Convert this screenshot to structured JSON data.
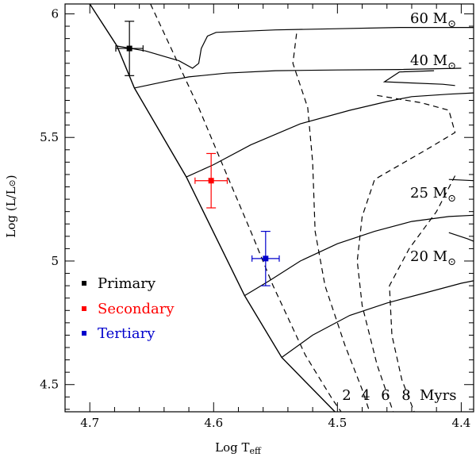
{
  "chart_data": {
    "type": "line",
    "title": "",
    "xlabel": {
      "main": "Log T",
      "sub": "eff"
    },
    "ylabel": {
      "main": "Log (L/L",
      "sun": "⊙",
      "tail": ")"
    },
    "xlim": [
      4.72,
      4.39
    ],
    "ylim": [
      4.39,
      6.04
    ],
    "x_reversed": true,
    "x_ticks": [
      "4.7",
      "4.6",
      "4.5",
      "4.4"
    ],
    "x_tick_values": [
      4.7,
      4.6,
      4.5,
      4.4
    ],
    "y_ticks": [
      "4.5",
      "5",
      "5.5",
      "6"
    ],
    "y_tick_values": [
      4.5,
      5.0,
      5.5,
      6.0
    ],
    "colors": {
      "primary": "#000000",
      "secondary": "#ff0000",
      "tertiary": "#0000cc"
    },
    "zams": [
      [
        4.7,
        6.04
      ],
      [
        4.678,
        5.87
      ],
      [
        4.664,
        5.7
      ],
      [
        4.622,
        5.34
      ],
      [
        4.575,
        4.86
      ],
      [
        4.545,
        4.61
      ],
      [
        4.502,
        4.39
      ]
    ],
    "tracks": [
      {
        "label": "60 M",
        "sun": "⊙",
        "points": [
          [
            4.678,
            5.87
          ],
          [
            4.655,
            5.85
          ],
          [
            4.628,
            5.81
          ],
          [
            4.617,
            5.78
          ],
          [
            4.612,
            5.8
          ],
          [
            4.61,
            5.86
          ],
          [
            4.605,
            5.91
          ],
          [
            4.598,
            5.925
          ],
          [
            4.55,
            5.935
          ],
          [
            4.5,
            5.94
          ],
          [
            4.45,
            5.945
          ],
          [
            4.39,
            5.945
          ]
        ]
      },
      {
        "label": "40 M",
        "sun": "⊙",
        "points": [
          [
            4.664,
            5.7
          ],
          [
            4.64,
            5.725
          ],
          [
            4.62,
            5.745
          ],
          [
            4.59,
            5.76
          ],
          [
            4.55,
            5.77
          ],
          [
            4.5,
            5.773
          ],
          [
            4.45,
            5.775
          ],
          [
            4.4,
            5.78
          ]
        ]
      },
      {
        "label": "",
        "points": [
          [
            4.422,
            5.77
          ],
          [
            4.45,
            5.765
          ],
          [
            4.462,
            5.725
          ],
          [
            4.415,
            5.715
          ],
          [
            4.405,
            5.71
          ]
        ]
      },
      {
        "label": "",
        "points": [
          [
            4.622,
            5.34
          ],
          [
            4.6,
            5.39
          ],
          [
            4.57,
            5.47
          ],
          [
            4.53,
            5.555
          ],
          [
            4.49,
            5.61
          ],
          [
            4.46,
            5.645
          ],
          [
            4.44,
            5.665
          ],
          [
            4.41,
            5.675
          ],
          [
            4.39,
            5.68
          ]
        ]
      },
      {
        "label": "25 M",
        "sun": "⊙",
        "points": [
          [
            4.575,
            4.86
          ],
          [
            4.555,
            4.92
          ],
          [
            4.53,
            5.0
          ],
          [
            4.5,
            5.07
          ],
          [
            4.47,
            5.12
          ],
          [
            4.44,
            5.16
          ],
          [
            4.41,
            5.18
          ],
          [
            4.39,
            5.185
          ]
        ]
      },
      {
        "label": "",
        "points": [
          [
            4.545,
            4.61
          ],
          [
            4.52,
            4.7
          ],
          [
            4.49,
            4.78
          ],
          [
            4.46,
            4.83
          ],
          [
            4.43,
            4.87
          ],
          [
            4.4,
            4.91
          ],
          [
            4.39,
            4.92
          ]
        ]
      },
      {
        "label": "20 M",
        "sun": "⊙",
        "points": [
          [
            4.41,
            5.115
          ],
          [
            4.395,
            5.09
          ],
          [
            4.39,
            5.08
          ]
        ]
      },
      {
        "label": "",
        "points": [
          [
            4.41,
            5.33
          ],
          [
            4.39,
            5.325
          ]
        ]
      }
    ],
    "isochrones": [
      {
        "label": "2",
        "points": [
          [
            4.651,
            6.04
          ],
          [
            4.612,
            5.62
          ],
          [
            4.592,
            5.38
          ],
          [
            4.57,
            5.12
          ],
          [
            4.552,
            4.9
          ],
          [
            4.526,
            4.62
          ],
          [
            4.504,
            4.44
          ],
          [
            4.497,
            4.39
          ]
        ]
      },
      {
        "label": "4",
        "points": [
          [
            4.533,
            5.92
          ],
          [
            4.536,
            5.8
          ],
          [
            4.524,
            5.62
          ],
          [
            4.52,
            5.4
          ],
          [
            4.518,
            5.12
          ],
          [
            4.51,
            4.9
          ],
          [
            4.494,
            4.66
          ],
          [
            4.48,
            4.48
          ],
          [
            4.474,
            4.39
          ]
        ]
      },
      {
        "label": "6",
        "points": [
          [
            4.468,
            5.67
          ],
          [
            4.432,
            5.64
          ],
          [
            4.41,
            5.61
          ],
          [
            4.405,
            5.52
          ],
          [
            4.425,
            5.46
          ],
          [
            4.47,
            5.33
          ],
          [
            4.48,
            5.18
          ],
          [
            4.484,
            5.0
          ],
          [
            4.48,
            4.82
          ],
          [
            4.468,
            4.58
          ],
          [
            4.455,
            4.39
          ]
        ]
      },
      {
        "label": "8",
        "points": [
          [
            4.405,
            5.345
          ],
          [
            4.42,
            5.2
          ],
          [
            4.442,
            5.05
          ],
          [
            4.458,
            4.9
          ],
          [
            4.456,
            4.7
          ],
          [
            4.448,
            4.52
          ],
          [
            4.438,
            4.39
          ]
        ]
      }
    ],
    "stars": [
      {
        "name": "Primary",
        "x": 4.668,
        "y": 5.86,
        "xerr": 0.011,
        "yerr": 0.11,
        "color": "#000000"
      },
      {
        "name": "Secondary",
        "x": 4.602,
        "y": 5.325,
        "xerr": 0.013,
        "yerr": 0.11,
        "color": "#ff0000"
      },
      {
        "name": "Tertiary",
        "x": 4.558,
        "y": 5.01,
        "xerr": 0.011,
        "yerr": 0.11,
        "color": "#0000cc"
      }
    ],
    "legend": {
      "placement": "bottom-left",
      "items": [
        "Primary",
        "Secondary",
        "Tertiary"
      ]
    },
    "isochrone_unit": "Myrs"
  }
}
